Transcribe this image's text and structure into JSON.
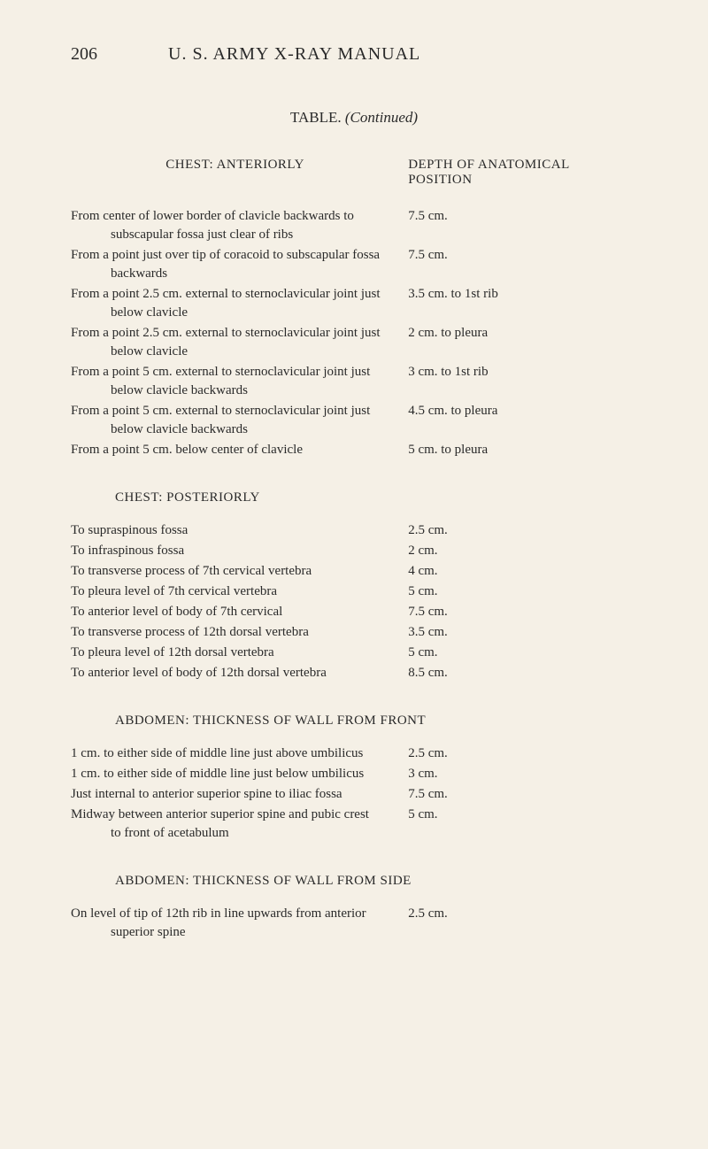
{
  "page_number": "206",
  "main_title": "U. S. ARMY X-RAY MANUAL",
  "table_caption_label": "TABLE.",
  "table_caption_italic": "(Continued)",
  "column_headers": {
    "left": "CHEST: ANTERIORLY",
    "right_line1": "DEPTH OF ANATOMICAL",
    "right_line2": "POSITION"
  },
  "sections": [
    {
      "heading": null,
      "rows": [
        {
          "left": "From center of lower border of clavicle backwards to subscapular fossa just clear of ribs",
          "right": "7.5 cm."
        },
        {
          "left": "From a point just over tip of coracoid to subscapular fossa backwards",
          "right": "7.5 cm."
        },
        {
          "left": "From a point 2.5 cm. external to sternoclavicular joint just below clavicle",
          "right": "3.5 cm. to 1st rib"
        },
        {
          "left": "From a point 2.5 cm. external to sternoclavicular joint just below clavicle",
          "right": "2 cm. to pleura"
        },
        {
          "left": "From a point 5 cm. external to sternoclavicular joint just below clavicle backwards",
          "right": "3 cm. to 1st rib"
        },
        {
          "left": "From a point 5 cm. external to sternoclavicular joint just below clavicle backwards",
          "right": "4.5 cm. to pleura"
        },
        {
          "left": "From a point 5 cm. below center of clavicle",
          "right": "5 cm. to pleura"
        }
      ]
    },
    {
      "heading": "CHEST: POSTERIORLY",
      "rows": [
        {
          "left": "To supraspinous fossa",
          "right": "2.5 cm."
        },
        {
          "left": "To infraspinous fossa",
          "right": "2 cm."
        },
        {
          "left": "To transverse process of 7th cervical vertebra",
          "right": "4 cm."
        },
        {
          "left": "To pleura level of 7th cervical vertebra",
          "right": "5 cm."
        },
        {
          "left": "To anterior level of body of 7th cervical",
          "right": "7.5 cm."
        },
        {
          "left": "To transverse process of 12th dorsal vertebra",
          "right": "3.5 cm."
        },
        {
          "left": "To pleura level of 12th dorsal vertebra",
          "right": "5 cm."
        },
        {
          "left": "To anterior level of body of 12th dorsal vertebra",
          "right": "8.5 cm."
        }
      ]
    },
    {
      "heading": "ABDOMEN: THICKNESS OF WALL FROM FRONT",
      "rows": [
        {
          "left": "1 cm. to either side of middle line just above umbilicus",
          "right": "2.5 cm."
        },
        {
          "left": "1 cm. to either side of middle line just below umbilicus",
          "right": "3 cm."
        },
        {
          "left": "Just internal to anterior superior spine to iliac fossa",
          "right": "7.5 cm."
        },
        {
          "left": "Midway between anterior superior spine and pubic crest to front of acetabulum",
          "right": "5 cm."
        }
      ]
    },
    {
      "heading": "ABDOMEN: THICKNESS OF WALL FROM SIDE",
      "rows": [
        {
          "left": "On level of tip of 12th rib in line upwards from anterior superior spine",
          "right": "2.5 cm."
        }
      ]
    }
  ]
}
